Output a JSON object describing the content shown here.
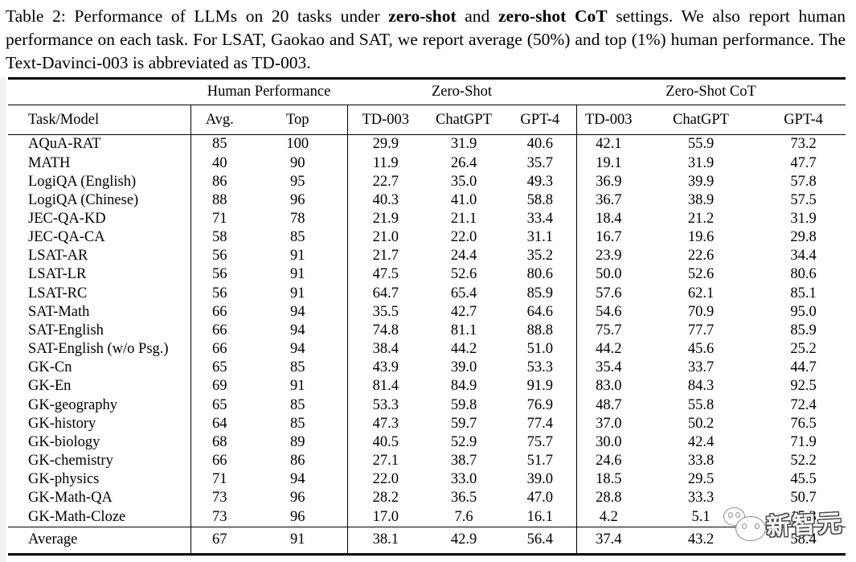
{
  "caption": {
    "part1": "Table 2: Performance of LLMs on 20 tasks under ",
    "bold1": "zero-shot",
    "part2": " and ",
    "bold2": "zero-shot CoT",
    "part3": " settings. We also report human performance on each task. For LSAT, Gaokao and SAT, we report average (50%) and top (1%) human performance. The Text-Davinci-003 is abbreviated as TD-003."
  },
  "table": {
    "group_headers": {
      "human": "Human Performance",
      "zero_shot": "Zero-Shot",
      "zero_shot_cot": "Zero-Shot CoT"
    },
    "column_headers": [
      "Task/Model",
      "Avg.",
      "Top",
      "TD-003",
      "ChatGPT",
      "GPT-4",
      "TD-003",
      "ChatGPT",
      "GPT-4"
    ],
    "rows": [
      {
        "task": "AQuA-RAT",
        "values": [
          "85",
          "100",
          "29.9",
          "31.9",
          "40.6",
          "42.1",
          "55.9",
          "73.2"
        ]
      },
      {
        "task": "MATH",
        "values": [
          "40",
          "90",
          "11.9",
          "26.4",
          "35.7",
          "19.1",
          "31.9",
          "47.7"
        ]
      },
      {
        "task": "LogiQA (English)",
        "values": [
          "86",
          "95",
          "22.7",
          "35.0",
          "49.3",
          "36.9",
          "39.9",
          "57.8"
        ]
      },
      {
        "task": "LogiQA (Chinese)",
        "values": [
          "88",
          "96",
          "40.3",
          "41.0",
          "58.8",
          "36.7",
          "38.9",
          "57.5"
        ]
      },
      {
        "task": "JEC-QA-KD",
        "values": [
          "71",
          "78",
          "21.9",
          "21.1",
          "33.4",
          "18.4",
          "21.2",
          "31.9"
        ]
      },
      {
        "task": "JEC-QA-CA",
        "values": [
          "58",
          "85",
          "21.0",
          "22.0",
          "31.1",
          "16.7",
          "19.6",
          "29.8"
        ]
      },
      {
        "task": "LSAT-AR",
        "values": [
          "56",
          "91",
          "21.7",
          "24.4",
          "35.2",
          "23.9",
          "22.6",
          "34.4"
        ]
      },
      {
        "task": "LSAT-LR",
        "values": [
          "56",
          "91",
          "47.5",
          "52.6",
          "80.6",
          "50.0",
          "52.6",
          "80.6"
        ]
      },
      {
        "task": "LSAT-RC",
        "values": [
          "56",
          "91",
          "64.7",
          "65.4",
          "85.9",
          "57.6",
          "62.1",
          "85.1"
        ]
      },
      {
        "task": "SAT-Math",
        "values": [
          "66",
          "94",
          "35.5",
          "42.7",
          "64.6",
          "54.6",
          "70.9",
          "95.0"
        ]
      },
      {
        "task": "SAT-English",
        "values": [
          "66",
          "94",
          "74.8",
          "81.1",
          "88.8",
          "75.7",
          "77.7",
          "85.9"
        ]
      },
      {
        "task": "SAT-English (w/o Psg.)",
        "values": [
          "66",
          "94",
          "38.4",
          "44.2",
          "51.0",
          "44.2",
          "45.6",
          "25.2"
        ]
      },
      {
        "task": "GK-Cn",
        "values": [
          "65",
          "85",
          "43.9",
          "39.0",
          "53.3",
          "35.4",
          "33.7",
          "44.7"
        ]
      },
      {
        "task": "GK-En",
        "values": [
          "69",
          "91",
          "81.4",
          "84.9",
          "91.9",
          "83.0",
          "84.3",
          "92.5"
        ]
      },
      {
        "task": "GK-geography",
        "values": [
          "65",
          "85",
          "53.3",
          "59.8",
          "76.9",
          "48.7",
          "55.8",
          "72.4"
        ]
      },
      {
        "task": "GK-history",
        "values": [
          "64",
          "85",
          "47.3",
          "59.7",
          "77.4",
          "37.0",
          "50.2",
          "76.5"
        ]
      },
      {
        "task": "GK-biology",
        "values": [
          "68",
          "89",
          "40.5",
          "52.9",
          "75.7",
          "30.0",
          "42.4",
          "71.9"
        ]
      },
      {
        "task": "GK-chemistry",
        "values": [
          "66",
          "86",
          "27.1",
          "38.7",
          "51.7",
          "24.6",
          "33.8",
          "52.2"
        ]
      },
      {
        "task": "GK-physics",
        "values": [
          "71",
          "94",
          "22.0",
          "33.0",
          "39.0",
          "18.5",
          "29.5",
          "45.5"
        ]
      },
      {
        "task": "GK-Math-QA",
        "values": [
          "73",
          "96",
          "28.2",
          "36.5",
          "47.0",
          "28.8",
          "33.3",
          "50.7"
        ]
      },
      {
        "task": "GK-Math-Cloze",
        "values": [
          "73",
          "96",
          "17.0",
          "7.6",
          "16.1",
          "4.2",
          "5.1",
          "15.3"
        ]
      }
    ],
    "average_row": {
      "task": "Average",
      "values": [
        "67",
        "91",
        "38.1",
        "42.9",
        "56.4",
        "37.4",
        "43.2",
        "58.4"
      ]
    }
  },
  "watermark": {
    "text": "新智元"
  },
  "colors": {
    "text": "#000000",
    "background": "#ffffff",
    "rule": "#000000",
    "watermark_outline": "#4a4a4a"
  }
}
